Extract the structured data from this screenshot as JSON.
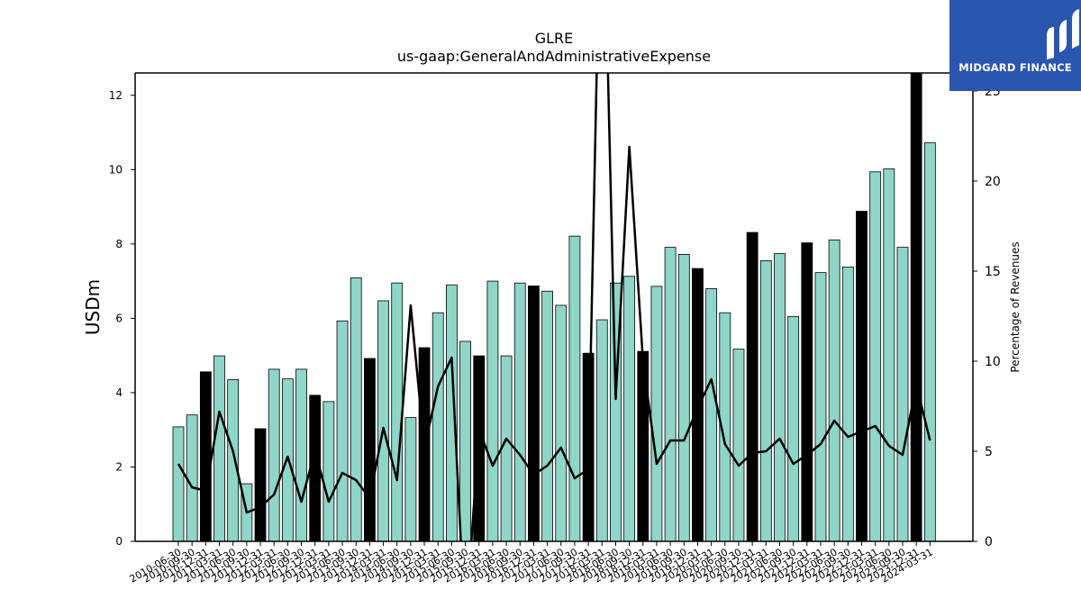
{
  "chart_data": {
    "type": "bar",
    "title": "GLRE",
    "subtitle": "us-gaap:GeneralAndAdministrativeExpense",
    "ylabel": "USDm",
    "ylabel_right": "Percentage of Revenues",
    "ylim": [
      0,
      12.6
    ],
    "ylim_right": [
      0,
      26
    ],
    "yticks": [
      0,
      2,
      4,
      6,
      8,
      10,
      12
    ],
    "yticks_right": [
      0,
      5,
      10,
      15,
      20,
      25
    ],
    "colors": {
      "bar": "#8fd5c8",
      "bar_highlight": "#000000",
      "line": "#000000",
      "edge": "#000000"
    },
    "categories": [
      "2010-06-30",
      "2010-09-30",
      "2010-12-31",
      "2011-03-31",
      "2011-06-30",
      "2011-09-30",
      "2011-12-31",
      "2012-03-31",
      "2012-06-30",
      "2012-09-30",
      "2012-12-31",
      "2013-03-31",
      "2013-06-30",
      "2013-09-30",
      "2013-12-31",
      "2014-03-31",
      "2014-06-30",
      "2014-09-30",
      "2014-12-31",
      "2015-03-31",
      "2015-06-30",
      "2015-09-30",
      "2015-12-31",
      "2016-03-31",
      "2016-06-30",
      "2016-09-30",
      "2016-12-31",
      "2017-03-31",
      "2017-06-30",
      "2017-09-30",
      "2017-12-31",
      "2018-03-31",
      "2018-06-30",
      "2018-09-30",
      "2018-12-31",
      "2019-03-31",
      "2019-06-30",
      "2019-09-30",
      "2019-12-31",
      "2020-03-31",
      "2020-06-30",
      "2020-09-30",
      "2020-12-31",
      "2021-03-31",
      "2021-06-30",
      "2021-09-30",
      "2021-12-31",
      "2022-03-31",
      "2022-06-30",
      "2022-09-30",
      "2022-12-31",
      "2023-03-31",
      "2023-06-30",
      "2023-09-30",
      "2023-12-31",
      "2024-03-31"
    ],
    "xtick_labels": [
      "2010-06-30",
      "2010-09-30",
      "2010-12-31",
      "2011-03-31",
      "2011-06-30",
      "2011-09-30",
      "2011-12-31",
      "2012-03-31",
      "2012-06-30",
      "2012-09-30",
      "2012-12-31",
      "2013-03-31",
      "2013-06-30",
      "2013-09-30",
      "2013-12-31",
      "2014-03-31",
      "2014-06-30",
      "2014-09-30",
      "2014-12-31",
      "2015-03-31",
      "2015-06-30",
      "2015-09-30",
      "2015-12-31",
      "2016-03-31",
      "2016-06-30",
      "2016-09-30",
      "2016-12-31",
      "2017-03-31",
      "2017-06-30",
      "2017-09-30",
      "2017-12-31",
      "2018-03-31",
      "2018-06-30",
      "2018-09-30",
      "2018-12-31",
      "2019-03-31",
      "2019-06-30",
      "2019-09-30",
      "2019-12-31",
      "2020-03-31",
      "2020-06-30",
      "2020-09-30",
      "2020-12-31",
      "2021-03-31",
      "2021-06-30",
      "2021-09-30",
      "2021-12-31",
      "2022-03-31",
      "2022-06-30",
      "2022-09-30",
      "2022-12-31",
      "2023-03-31",
      "2023-06-30",
      "2023-09-30",
      "2023-12-31",
      "2024-03-31"
    ],
    "series": [
      {
        "type": "bar",
        "axis": "left",
        "values": [
          3.08,
          3.4,
          4.56,
          4.99,
          4.35,
          1.55,
          3.03,
          4.63,
          4.37,
          4.63,
          3.93,
          3.76,
          5.93,
          7.09,
          4.92,
          6.47,
          6.95,
          3.33,
          5.21,
          6.15,
          6.9,
          5.38,
          4.99,
          7.0,
          4.99,
          6.95,
          6.87,
          6.73,
          6.35,
          8.21,
          5.06,
          5.96,
          6.95,
          7.13,
          5.11,
          6.86,
          7.91,
          7.72,
          7.34,
          6.8,
          6.15,
          5.17,
          8.31,
          7.55,
          7.74,
          6.05,
          8.03,
          7.23,
          8.11,
          7.38,
          8.88,
          9.94,
          10.02,
          7.91,
          12.6,
          10.72
        ],
        "highlight": [
          false,
          false,
          true,
          false,
          false,
          false,
          true,
          false,
          false,
          false,
          true,
          false,
          false,
          false,
          true,
          false,
          false,
          false,
          true,
          false,
          false,
          false,
          true,
          false,
          false,
          false,
          true,
          false,
          false,
          false,
          true,
          false,
          false,
          false,
          true,
          false,
          false,
          false,
          true,
          false,
          false,
          false,
          true,
          false,
          false,
          false,
          true,
          false,
          false,
          false,
          true,
          false,
          false,
          false,
          true,
          false
        ]
      },
      {
        "type": "line",
        "axis": "right",
        "values": [
          4.3,
          3.0,
          2.8,
          7.2,
          5.0,
          1.6,
          1.9,
          2.6,
          4.7,
          2.2,
          5.0,
          2.2,
          3.8,
          3.4,
          2.4,
          6.3,
          3.4,
          13.1,
          5.2,
          8.6,
          10.2,
          -5,
          6.2,
          4.2,
          5.7,
          4.8,
          3.7,
          4.2,
          5.2,
          3.5,
          4.0,
          40,
          7.9,
          21.9,
          10.0,
          4.3,
          5.6,
          5.6,
          7.4,
          9.0,
          5.4,
          4.2,
          4.9,
          5.0,
          5.7,
          4.3,
          4.8,
          5.4,
          6.7,
          5.8,
          6.1,
          6.4,
          5.3,
          4.8,
          8.7,
          5.6
        ]
      }
    ]
  },
  "logo": {
    "text": "MIDGARD FINANCE",
    "background": "#2b56ad"
  }
}
